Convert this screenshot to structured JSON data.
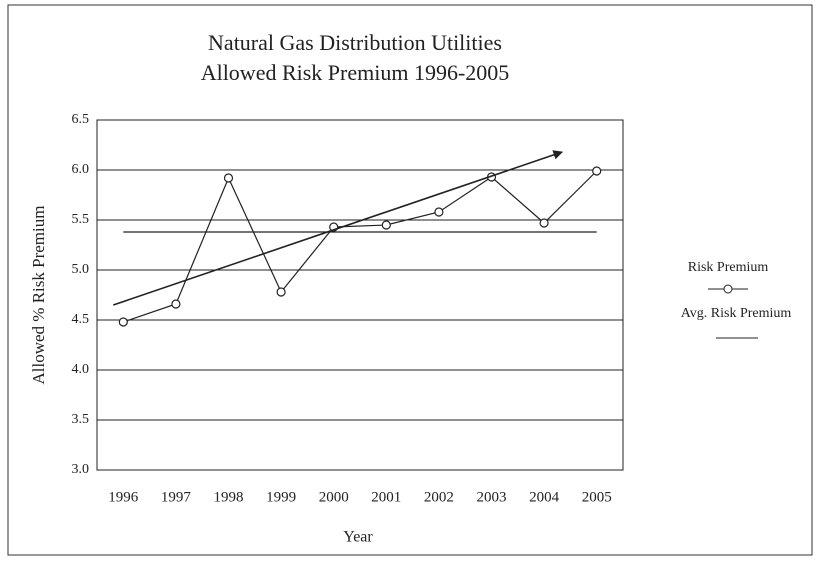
{
  "chart_data": {
    "type": "line",
    "title": [
      "Natural Gas Distribution Utilities",
      "Allowed Risk Premium 1996-2005"
    ],
    "xlabel": "Year",
    "ylabel": "Allowed % Risk Premium",
    "categories": [
      "1996",
      "1997",
      "1998",
      "1999",
      "2000",
      "2001",
      "2002",
      "2003",
      "2004",
      "2005"
    ],
    "series": [
      {
        "name": "Risk Premium",
        "color": "#222222",
        "marker": "circle",
        "values": [
          4.48,
          4.66,
          5.92,
          4.78,
          5.43,
          5.45,
          5.58,
          5.93,
          5.47,
          5.99
        ]
      },
      {
        "name": "Avg. Risk Premium",
        "color": "#222222",
        "marker": "none",
        "values": [
          5.38,
          5.38,
          5.38,
          5.38,
          5.38,
          5.38,
          5.38,
          5.38,
          5.38,
          5.38
        ]
      }
    ],
    "trend_line": {
      "x": [
        1996,
        2004
      ],
      "values": [
        4.65,
        6.18
      ],
      "color": "#222222"
    },
    "ylim": [
      3,
      6.5
    ],
    "yticks": [
      {
        "value": 3,
        "label": "3.0"
      },
      3.5,
      {
        "value": 4,
        "label": "4.0"
      },
      4.5,
      {
        "value": 5,
        "label": "5.0"
      },
      5.5,
      {
        "value": 6,
        "label": "6.0"
      },
      6.5
    ],
    "grid": true,
    "legend": "right"
  }
}
